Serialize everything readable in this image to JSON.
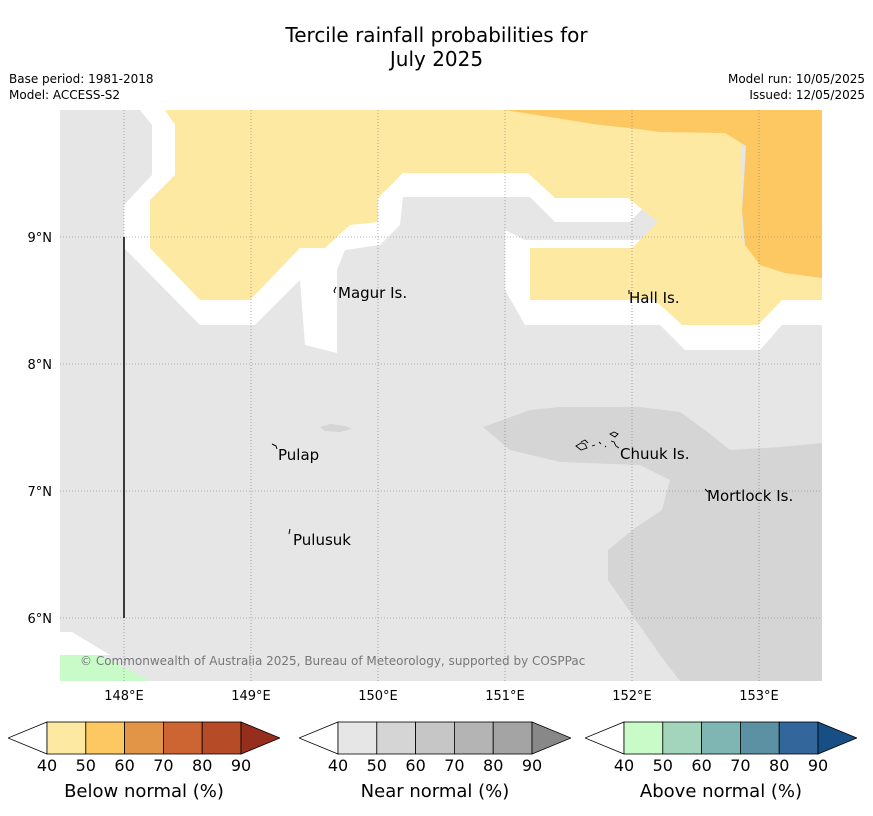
{
  "title_line1": "Tercile rainfall probabilities for",
  "title_line2": "July 2025",
  "base_period": "Base period: 1981-2018",
  "model": "Model: ACCESS-S2",
  "model_run": "Model run: 10/05/2025",
  "issued": "Issued: 12/05/2025",
  "copyright": "© Commonwealth of Australia 2025, Bureau of Meteorology, supported by COSPPac",
  "map": {
    "lon_ticks": [
      "148°E",
      "149°E",
      "150°E",
      "151°E",
      "152°E",
      "153°E"
    ],
    "lat_ticks": [
      "9°N",
      "8°N",
      "7°N",
      "6°N"
    ],
    "places": [
      "Magur Is.",
      "Hall Is.",
      "Pulap",
      "Chuuk Is.",
      "Mortlock Is.",
      "Pulusuk"
    ]
  },
  "legend": [
    {
      "label": "Below normal (%)",
      "ticks": [
        "40",
        "50",
        "60",
        "70",
        "80",
        "90"
      ],
      "colors": [
        "#fde9a2",
        "#fdc862",
        "#e29447",
        "#cd6532",
        "#b54c27",
        "#962e1d"
      ]
    },
    {
      "label": "Near normal (%)",
      "ticks": [
        "40",
        "50",
        "60",
        "70",
        "80",
        "90"
      ],
      "colors": [
        "#e6e6e6",
        "#d5d5d5",
        "#c6c6c6",
        "#b4b4b4",
        "#a4a4a4",
        "#888888"
      ]
    },
    {
      "label": "Above normal (%)",
      "ticks": [
        "40",
        "50",
        "60",
        "70",
        "80",
        "90"
      ],
      "colors": [
        "#c9fbc9",
        "#a3d5bc",
        "#7fb6b4",
        "#5b91a3",
        "#33669b",
        "#174f85"
      ]
    }
  ],
  "colors": {
    "below_40_50": "#fde9a2",
    "below_50_60": "#fdc862",
    "near_40_50": "#e6e6e6",
    "near_50_60": "#d5d5d5",
    "above_40_50": "#c9fbc9"
  }
}
